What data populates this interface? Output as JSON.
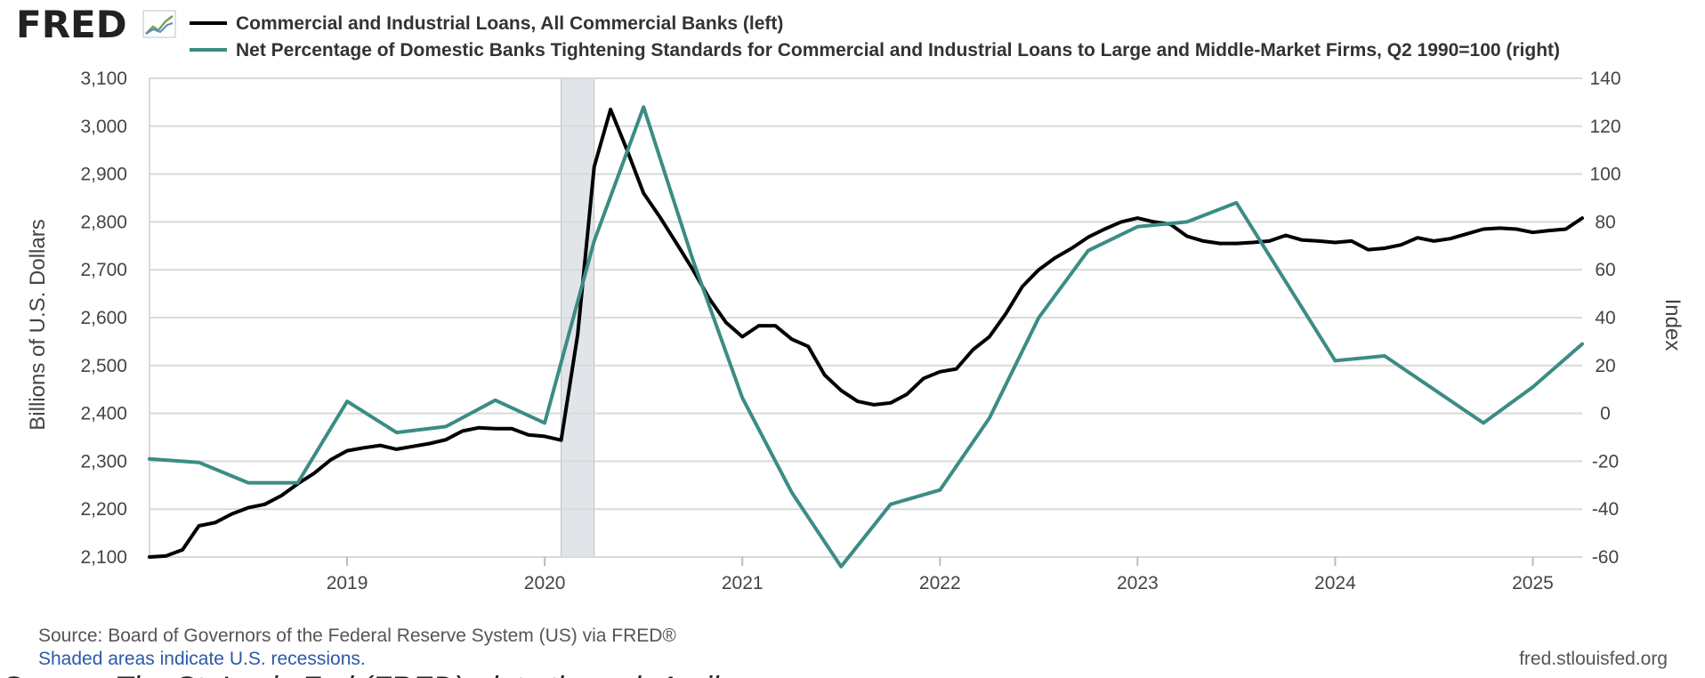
{
  "brand": {
    "name": "FRED",
    "mark": "fred-chart-icon"
  },
  "colors": {
    "series1": "#000000",
    "series2": "#3b8c84",
    "grid": "#d9d9d9",
    "recession": "#e1e5e9",
    "link": "#2a5aa8"
  },
  "chart_data": {
    "type": "line",
    "grid": true,
    "legend_position": "top",
    "series": [
      {
        "name": "Commercial and Industrial Loans, All Commercial Banks (left)",
        "axis": "left",
        "x": [
          2018.0,
          2018.083,
          2018.167,
          2018.25,
          2018.333,
          2018.417,
          2018.5,
          2018.583,
          2018.667,
          2018.75,
          2018.833,
          2018.917,
          2019.0,
          2019.083,
          2019.167,
          2019.25,
          2019.333,
          2019.417,
          2019.5,
          2019.583,
          2019.667,
          2019.75,
          2019.833,
          2019.917,
          2020.0,
          2020.083,
          2020.167,
          2020.25,
          2020.333,
          2020.417,
          2020.5,
          2020.583,
          2020.667,
          2020.75,
          2020.833,
          2020.917,
          2021.0,
          2021.083,
          2021.167,
          2021.25,
          2021.333,
          2021.417,
          2021.5,
          2021.583,
          2021.667,
          2021.75,
          2021.833,
          2021.917,
          2022.0,
          2022.083,
          2022.167,
          2022.25,
          2022.333,
          2022.417,
          2022.5,
          2022.583,
          2022.667,
          2022.75,
          2022.833,
          2022.917,
          2023.0,
          2023.083,
          2023.167,
          2023.25,
          2023.333,
          2023.417,
          2023.5,
          2023.583,
          2023.667,
          2023.75,
          2023.833,
          2023.917,
          2024.0,
          2024.083,
          2024.167,
          2024.25,
          2024.333,
          2024.417,
          2024.5,
          2024.583,
          2024.667,
          2024.75,
          2024.833,
          2024.917,
          2025.0,
          2025.083,
          2025.167,
          2025.25
        ],
        "values": [
          2100,
          2102,
          2115,
          2165,
          2172,
          2190,
          2203,
          2210,
          2228,
          2253,
          2275,
          2303,
          2322,
          2328,
          2333,
          2325,
          2331,
          2337,
          2345,
          2363,
          2370,
          2368,
          2368,
          2355,
          2352,
          2344,
          2565,
          2915,
          3035,
          2950,
          2860,
          2810,
          2755,
          2700,
          2640,
          2590,
          2560,
          2583,
          2583,
          2555,
          2540,
          2480,
          2448,
          2425,
          2418,
          2422,
          2440,
          2473,
          2487,
          2493,
          2533,
          2560,
          2608,
          2665,
          2700,
          2725,
          2745,
          2768,
          2785,
          2800,
          2808,
          2800,
          2795,
          2770,
          2760,
          2755,
          2755,
          2757,
          2760,
          2772,
          2762,
          2760,
          2757,
          2760,
          2742,
          2745,
          2752,
          2767,
          2760,
          2765,
          2775,
          2785,
          2787,
          2785,
          2778,
          2782,
          2785,
          2808
        ]
      },
      {
        "name": "Net Percentage of Domestic Banks Tightening Standards for Commercial and Industrial Loans to Large and Middle-Market Firms, Q2 1990=100 (right)",
        "axis": "right",
        "x": [
          2018.0,
          2018.25,
          2018.5,
          2018.75,
          2019.0,
          2019.25,
          2019.5,
          2019.75,
          2020.0,
          2020.25,
          2020.5,
          2020.75,
          2021.0,
          2021.25,
          2021.5,
          2021.75,
          2022.0,
          2022.25,
          2022.5,
          2022.75,
          2023.0,
          2023.25,
          2023.5,
          2023.75,
          2024.0,
          2024.25,
          2024.5,
          2024.75,
          2025.0,
          2025.25
        ],
        "values": [
          -19,
          -20.5,
          -29,
          -29,
          5,
          -8,
          -5.5,
          5.5,
          -4,
          72,
          128,
          64,
          6.5,
          -33,
          -64,
          -38,
          -32,
          -2,
          40,
          68,
          78,
          80,
          88,
          55,
          22,
          24,
          10,
          -4,
          11,
          29
        ]
      }
    ],
    "recessions": [
      [
        2020.083,
        2020.25
      ]
    ],
    "xlim": [
      2018.0,
      2025.25
    ],
    "ylim_left": [
      2100,
      3100
    ],
    "ylim_right": [
      -60,
      140
    ],
    "x_ticks": [
      2019,
      2020,
      2021,
      2022,
      2023,
      2024,
      2025
    ],
    "x_tick_labels": [
      "2019",
      "2020",
      "2021",
      "2022",
      "2023",
      "2024",
      "2025"
    ],
    "left_ticks": [
      2100,
      2200,
      2300,
      2400,
      2500,
      2600,
      2700,
      2800,
      2900,
      3000,
      3100
    ],
    "left_tick_labels": [
      "2,100",
      "2,200",
      "2,300",
      "2,400",
      "2,500",
      "2,600",
      "2,700",
      "2,800",
      "2,900",
      "3,000",
      "3,100"
    ],
    "right_ticks": [
      -60,
      -40,
      -20,
      0,
      20,
      40,
      60,
      80,
      100,
      120,
      140
    ],
    "right_tick_labels": [
      "-60",
      "-40",
      "-20",
      "0",
      "20",
      "40",
      "60",
      "80",
      "100",
      "120",
      "140"
    ],
    "ylabel_left": "Billions of U.S. Dollars",
    "ylabel_right": "Index"
  },
  "footer": {
    "source": "Source: Board of Governors of the Federal Reserve System (US) via FRED®",
    "recession_note": "Shaded areas indicate U.S. recessions.",
    "site": "fred.stlouisfed.org"
  },
  "caption": "Source: The St. Louis Fed (FRED), data through April"
}
